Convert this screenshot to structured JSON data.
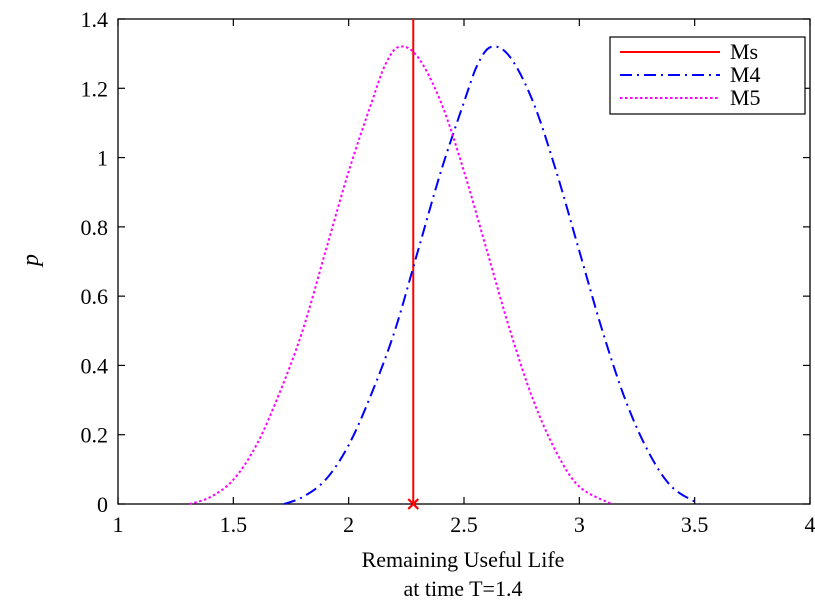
{
  "chart_data": {
    "type": "line",
    "xlabel": "Remaining Useful Life",
    "xlabel_line2": "at time T=1.4",
    "ylabel": "p",
    "xlim": [
      1,
      4
    ],
    "ylim": [
      0,
      1.4
    ],
    "xticks": [
      1,
      1.5,
      2,
      2.5,
      3,
      3.5,
      4
    ],
    "xtick_labels": [
      "1",
      "1.5",
      "2",
      "2.5",
      "3",
      "3.5",
      "4"
    ],
    "yticks": [
      0,
      0.2,
      0.4,
      0.6,
      0.8,
      1.0,
      1.2,
      1.4
    ],
    "ytick_labels": [
      "0",
      "0.2",
      "0.4",
      "0.6",
      "0.8",
      "1",
      "1.2",
      "1.4"
    ],
    "legend_position": "top-right",
    "grid": false,
    "series": [
      {
        "name": "Ms",
        "kind": "vertical-line",
        "x": 2.28,
        "color": "#ff0000",
        "style": "solid",
        "marker": {
          "x": 2.28,
          "y": 0,
          "symbol": "x"
        }
      },
      {
        "name": "M4",
        "kind": "curve",
        "color": "#0000ff",
        "style": "dashdot",
        "x": [
          1.72,
          1.8,
          1.9,
          2.0,
          2.1,
          2.2,
          2.3,
          2.4,
          2.5,
          2.56,
          2.62,
          2.7,
          2.8,
          2.9,
          3.0,
          3.1,
          3.2,
          3.3,
          3.4,
          3.52
        ],
        "y": [
          0.0,
          0.02,
          0.07,
          0.17,
          0.32,
          0.5,
          0.73,
          0.96,
          1.16,
          1.27,
          1.32,
          1.29,
          1.16,
          0.96,
          0.73,
          0.5,
          0.3,
          0.15,
          0.05,
          0.0
        ]
      },
      {
        "name": "M5",
        "kind": "curve",
        "color": "#ff00ff",
        "style": "dotted",
        "x": [
          1.31,
          1.4,
          1.5,
          1.6,
          1.7,
          1.8,
          1.9,
          2.0,
          2.1,
          2.16,
          2.22,
          2.3,
          2.4,
          2.5,
          2.6,
          2.7,
          2.8,
          2.9,
          3.0,
          3.14
        ],
        "y": [
          0.0,
          0.02,
          0.07,
          0.17,
          0.32,
          0.5,
          0.73,
          0.96,
          1.16,
          1.27,
          1.32,
          1.29,
          1.16,
          0.96,
          0.73,
          0.5,
          0.3,
          0.15,
          0.05,
          0.0
        ]
      }
    ]
  }
}
